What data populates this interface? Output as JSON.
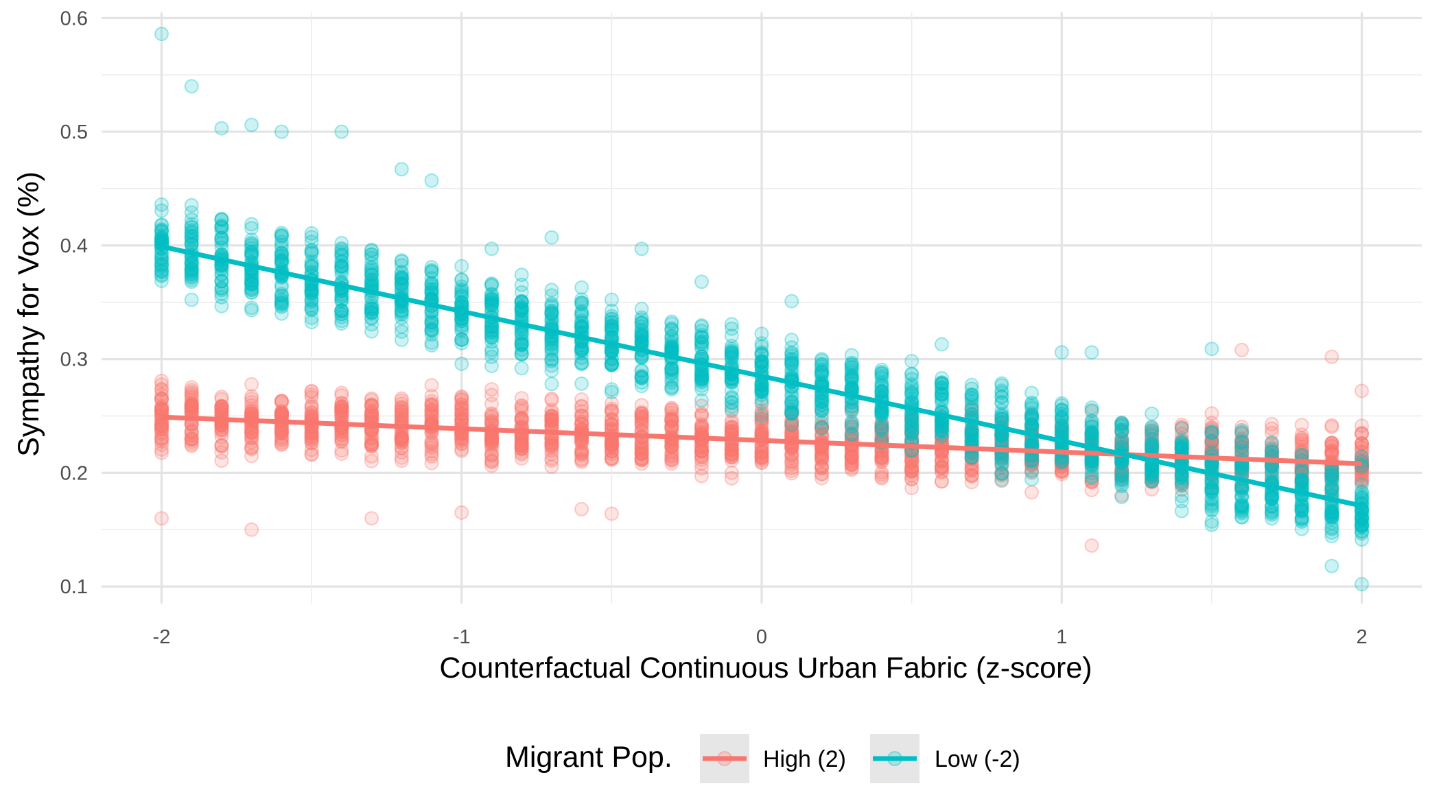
{
  "chart_data": {
    "type": "scatter",
    "title": "",
    "xlabel": "Counterfactual Continuous Urban Fabric (z-score)",
    "ylabel": "Sympathy for Vox (%)",
    "xlim": [
      -2.2,
      2.2
    ],
    "ylim": [
      0.085,
      0.605
    ],
    "x_ticks": [
      -2,
      -1,
      0,
      1,
      2
    ],
    "x_tick_labels": [
      "-2",
      "-1",
      "0",
      "1",
      "2"
    ],
    "y_ticks": [
      0.1,
      0.2,
      0.3,
      0.4,
      0.5,
      0.6
    ],
    "y_tick_labels": [
      "0.1",
      "0.2",
      "0.3",
      "0.4",
      "0.5",
      "0.6"
    ],
    "grid": true,
    "legend": {
      "title": "Migrant Pop.",
      "position": "bottom",
      "entries": [
        "High (2)",
        "Low (-2)"
      ]
    },
    "x_values": [
      -2.0,
      -1.9,
      -1.8,
      -1.7,
      -1.6,
      -1.5,
      -1.4,
      -1.3,
      -1.2,
      -1.1,
      -1.0,
      -0.9,
      -0.8,
      -0.7,
      -0.6,
      -0.5,
      -0.4,
      -0.3,
      -0.2,
      -0.1,
      0.0,
      0.1,
      0.2,
      0.3,
      0.4,
      0.5,
      0.6,
      0.7,
      0.8,
      0.9,
      1.0,
      1.1,
      1.2,
      1.3,
      1.4,
      1.5,
      1.6,
      1.7,
      1.8,
      1.9,
      2.0
    ],
    "series": [
      {
        "name": "High (2)",
        "color": "#f8766d",
        "fit_line": [
          [
            -2,
            0.249
          ],
          [
            2,
            0.208
          ]
        ],
        "spread": 0.042,
        "extremes": [
          [
            -2.0,
            0.16
          ],
          [
            -1.7,
            0.15
          ],
          [
            -1.3,
            0.16
          ],
          [
            -1.0,
            0.165
          ],
          [
            -0.6,
            0.168
          ],
          [
            -0.5,
            0.164
          ],
          [
            1.1,
            0.136
          ],
          [
            1.6,
            0.308
          ],
          [
            1.9,
            0.302
          ],
          [
            2.0,
            0.272
          ]
        ]
      },
      {
        "name": "Low (-2)",
        "color": "#00bfc4",
        "fit_line": [
          [
            -2,
            0.399
          ],
          [
            2,
            0.171
          ]
        ],
        "spread": 0.052,
        "extremes": [
          [
            -2.0,
            0.586
          ],
          [
            -1.9,
            0.54
          ],
          [
            -1.8,
            0.503
          ],
          [
            -1.7,
            0.506
          ],
          [
            -1.6,
            0.5
          ],
          [
            -1.4,
            0.5
          ],
          [
            -1.2,
            0.467
          ],
          [
            -1.1,
            0.457
          ],
          [
            -0.9,
            0.397
          ],
          [
            -0.7,
            0.407
          ],
          [
            -0.4,
            0.397
          ],
          [
            -0.2,
            0.368
          ],
          [
            0.1,
            0.351
          ],
          [
            0.6,
            0.313
          ],
          [
            1.0,
            0.306
          ],
          [
            1.1,
            0.306
          ],
          [
            1.5,
            0.309
          ],
          [
            1.9,
            0.118
          ],
          [
            2.0,
            0.102
          ]
        ]
      }
    ]
  }
}
